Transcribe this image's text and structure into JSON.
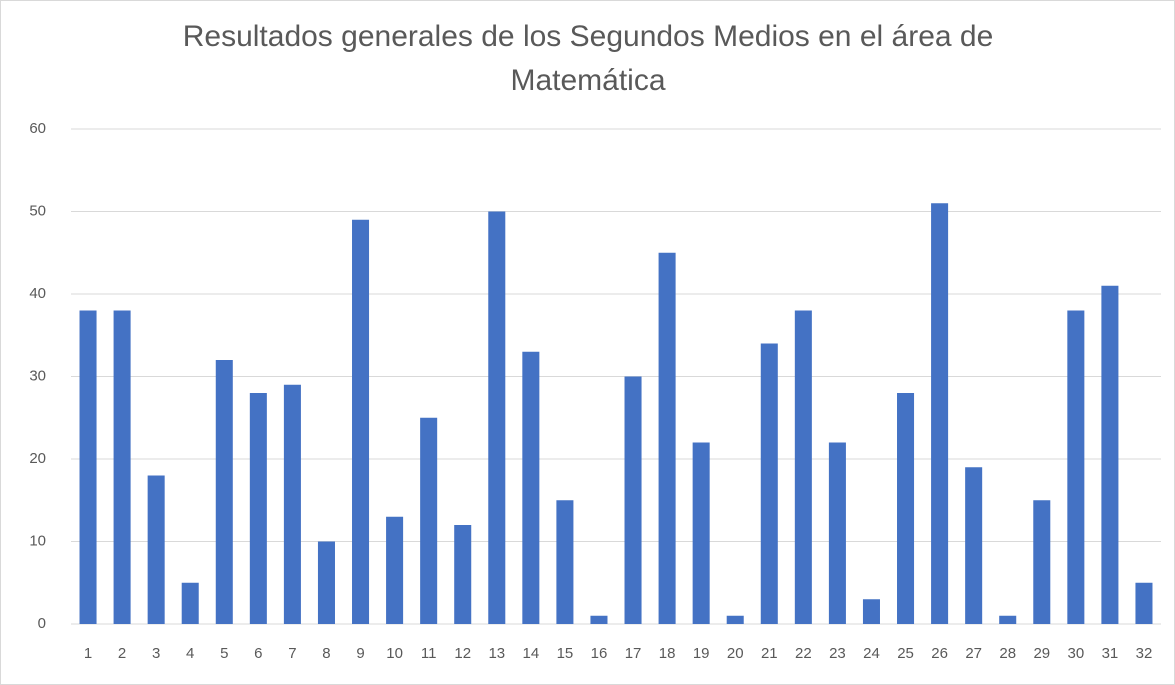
{
  "chart_data": {
    "type": "bar",
    "title": "Resultados generales de los Segundos Medios en el área de Matemática",
    "categories": [
      "1",
      "2",
      "3",
      "4",
      "5",
      "6",
      "7",
      "8",
      "9",
      "10",
      "11",
      "12",
      "13",
      "14",
      "15",
      "16",
      "17",
      "18",
      "19",
      "20",
      "21",
      "22",
      "23",
      "24",
      "25",
      "26",
      "27",
      "28",
      "29",
      "30",
      "31",
      "32"
    ],
    "values": [
      38,
      38,
      18,
      5,
      32,
      28,
      29,
      10,
      49,
      13,
      25,
      12,
      50,
      33,
      15,
      1,
      30,
      45,
      22,
      1,
      34,
      38,
      22,
      3,
      28,
      51,
      19,
      1,
      15,
      38,
      41,
      5
    ],
    "color": "#4472c4",
    "ylim": [
      0,
      60
    ],
    "yticks": [
      0,
      10,
      20,
      30,
      40,
      50,
      60
    ],
    "grid": true
  }
}
